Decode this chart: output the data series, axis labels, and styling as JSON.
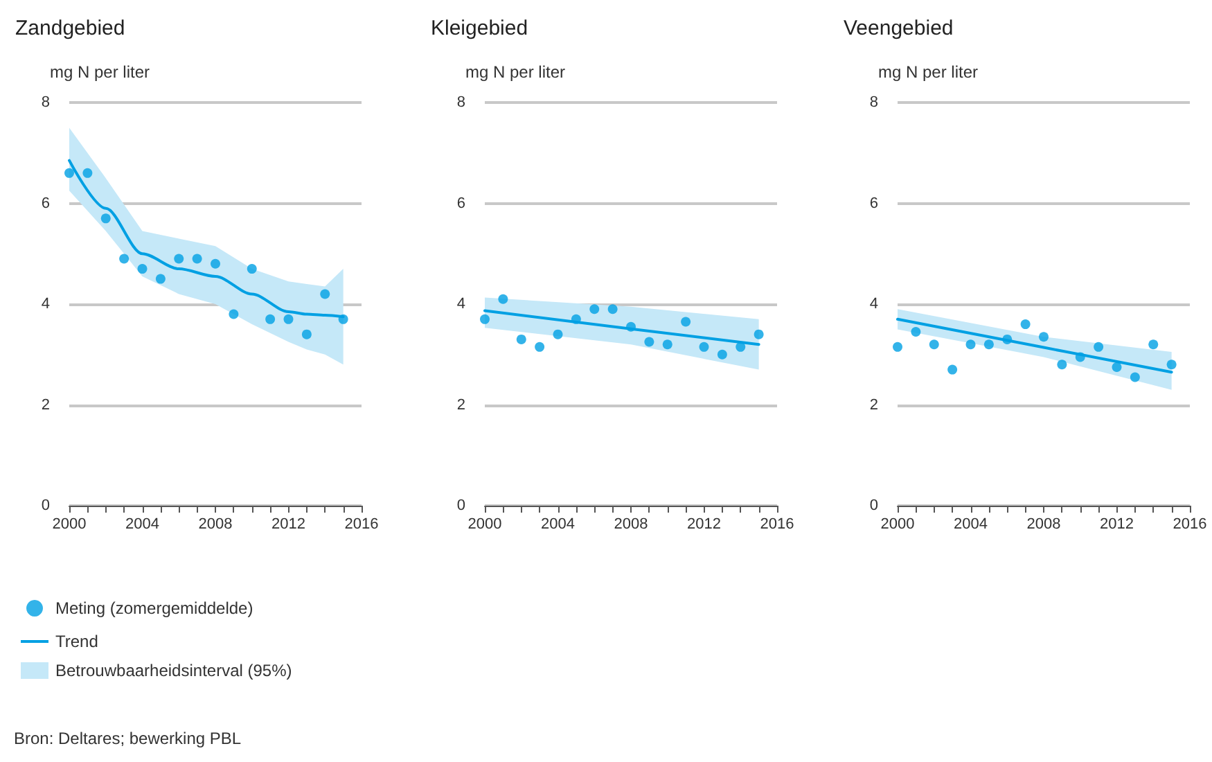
{
  "chart_data": [
    {
      "type": "scatter",
      "title": "Zandgebied",
      "ylabel": "mg N per liter",
      "xlim": [
        2000,
        2016
      ],
      "xticks": [
        2000,
        {
          "value": 2001,
          "label": null
        },
        {
          "value": 2002,
          "label": null
        },
        {
          "value": 2003,
          "label": null
        },
        2004,
        {
          "value": 2005,
          "label": null
        },
        {
          "value": 2006,
          "label": null
        },
        {
          "value": 2007,
          "label": null
        },
        2008,
        {
          "value": 2009,
          "label": null
        },
        {
          "value": 2010,
          "label": null
        },
        {
          "value": 2011,
          "label": null
        },
        2012,
        {
          "value": 2013,
          "label": null
        },
        {
          "value": 2014,
          "label": null
        },
        {
          "value": 2015,
          "label": null
        },
        2016
      ],
      "ylim": [
        0,
        8
      ],
      "yticks": [
        0,
        2,
        4,
        6,
        8
      ],
      "grid": "y",
      "legend": "bottom left",
      "annotations": [
        "Betrouwbaarheidsinterval (95%)",
        "Bron: Deltares; bewerking PBL"
      ],
      "series": [
        {
          "name": "Meting (zomergemiddelde)",
          "marker": "circle",
          "color": "#00a0e3",
          "x": [
            2000,
            2001,
            2002,
            2003,
            2004,
            2005,
            2006,
            2007,
            2008,
            2009,
            2010,
            2011,
            2012,
            2013,
            2014,
            2015
          ],
          "values": [
            6.6,
            6.6,
            5.7,
            4.9,
            4.7,
            4.5,
            4.9,
            4.9,
            4.8,
            3.8,
            4.7,
            3.7,
            3.7,
            3.4,
            4.2,
            3.7
          ]
        },
        {
          "name": "Trend",
          "type": "line",
          "marker": "none",
          "color": "#00a0e3",
          "x": [
            2000,
            2002,
            2004,
            2006,
            2008,
            2010,
            2012,
            2013,
            2014,
            2015
          ],
          "values": [
            6.85,
            5.9,
            5.0,
            4.7,
            4.55,
            4.2,
            3.85,
            3.8,
            3.78,
            3.75
          ],
          "lower": [
            6.25,
            5.45,
            4.55,
            4.2,
            4.0,
            3.6,
            3.25,
            3.1,
            3.0,
            2.8
          ],
          "upper": [
            7.5,
            6.5,
            5.45,
            5.3,
            5.15,
            4.7,
            4.45,
            4.4,
            4.35,
            4.7
          ]
        }
      ]
    },
    {
      "type": "scatter",
      "title": "Kleigebied",
      "ylabel": "mg N per liter",
      "xlim": [
        2000,
        2016
      ],
      "xticks": [
        2000,
        {
          "value": 2001,
          "label": null
        },
        {
          "value": 2002,
          "label": null
        },
        {
          "value": 2003,
          "label": null
        },
        2004,
        {
          "value": 2005,
          "label": null
        },
        {
          "value": 2006,
          "label": null
        },
        {
          "value": 2007,
          "label": null
        },
        2008,
        {
          "value": 2009,
          "label": null
        },
        {
          "value": 2010,
          "label": null
        },
        {
          "value": 2011,
          "label": null
        },
        2012,
        {
          "value": 2013,
          "label": null
        },
        {
          "value": 2014,
          "label": null
        },
        {
          "value": 2015,
          "label": null
        },
        2016
      ],
      "ylim": [
        0,
        8
      ],
      "yticks": [
        0,
        2,
        4,
        6,
        8
      ],
      "grid": "y",
      "series": [
        {
          "marker": "circle",
          "color": "#00a0e3",
          "x": [
            2000,
            2001,
            2002,
            2003,
            2004,
            2005,
            2006,
            2007,
            2008,
            2009,
            2010,
            2011,
            2012,
            2013,
            2014,
            2015
          ],
          "values": [
            3.7,
            4.1,
            3.3,
            3.15,
            3.4,
            3.7,
            3.9,
            3.9,
            3.55,
            3.25,
            3.2,
            3.65,
            3.15,
            3.0,
            3.15,
            3.4
          ]
        },
        {
          "type": "line",
          "marker": "none",
          "color": "#00a0e3",
          "x": [
            2000,
            2008,
            2015
          ],
          "values": [
            3.87,
            3.51,
            3.2
          ],
          "lower": [
            3.53,
            3.2,
            2.7
          ],
          "upper": [
            4.13,
            3.95,
            3.7
          ]
        }
      ]
    },
    {
      "type": "scatter",
      "title": "Veengebied",
      "ylabel": "mg N per liter",
      "xlim": [
        2000,
        2016
      ],
      "xticks": [
        2000,
        {
          "value": 2001,
          "label": null
        },
        {
          "value": 2002,
          "label": null
        },
        {
          "value": 2003,
          "label": null
        },
        2004,
        {
          "value": 2005,
          "label": null
        },
        {
          "value": 2006,
          "label": null
        },
        {
          "value": 2007,
          "label": null
        },
        2008,
        {
          "value": 2009,
          "label": null
        },
        {
          "value": 2010,
          "label": null
        },
        {
          "value": 2011,
          "label": null
        },
        2012,
        {
          "value": 2013,
          "label": null
        },
        {
          "value": 2014,
          "label": null
        },
        {
          "value": 2015,
          "label": null
        },
        2016
      ],
      "ylim": [
        0,
        8
      ],
      "yticks": [
        0,
        2,
        4,
        6,
        8
      ],
      "grid": "y",
      "series": [
        {
          "marker": "circle",
          "color": "#00a0e3",
          "x": [
            2000,
            2001,
            2002,
            2003,
            2004,
            2005,
            2006,
            2007,
            2008,
            2009,
            2010,
            2011,
            2012,
            2013,
            2014,
            2015
          ],
          "values": [
            3.15,
            3.45,
            3.2,
            2.7,
            3.2,
            3.2,
            3.3,
            3.6,
            3.35,
            2.8,
            2.95,
            3.15,
            2.75,
            2.55,
            3.2,
            2.8
          ]
        },
        {
          "type": "line",
          "marker": "none",
          "color": "#00a0e3",
          "x": [
            2000,
            2008,
            2015
          ],
          "values": [
            3.7,
            3.14,
            2.65
          ],
          "lower": [
            3.5,
            2.95,
            2.3
          ],
          "upper": [
            3.9,
            3.35,
            3.05
          ]
        }
      ]
    }
  ]
}
